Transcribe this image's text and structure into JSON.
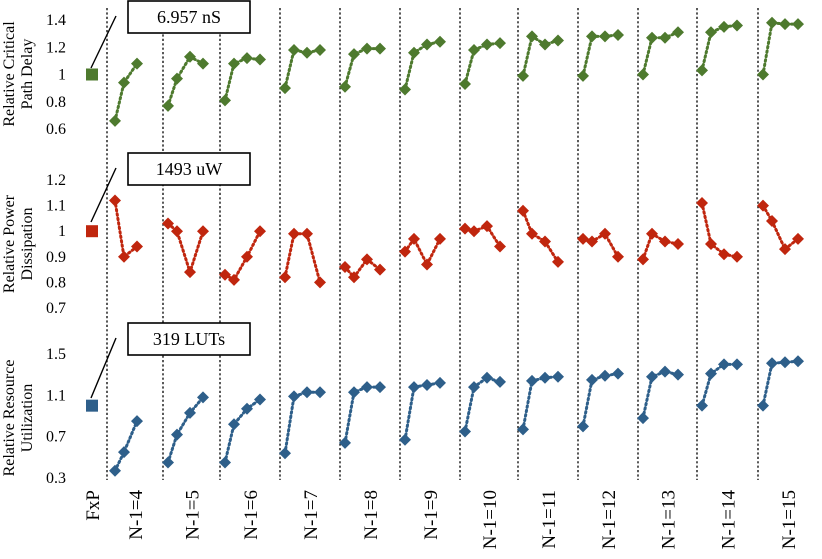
{
  "chart_data": {
    "type": "scatter",
    "categories": [
      "FxP",
      "N-1=4",
      "N-1=5",
      "N-1=6",
      "N-1=7",
      "N-1=8",
      "N-1=9",
      "N-1=10",
      "N-1=11",
      "N-1=12",
      "N-1=13",
      "N-1=14",
      "N-1=15"
    ],
    "panels": [
      {
        "id": "delay",
        "ylabel": [
          "Relative Critical",
          "Path Delay"
        ],
        "ylim": [
          0.6,
          1.4
        ],
        "yticks": [
          "1.4",
          "1.2",
          "1",
          "0.8",
          "0.6"
        ],
        "ytick_values": [
          1.4,
          1.2,
          1.0,
          0.8,
          0.6
        ],
        "color": "#4e7a2e",
        "baseline": 1.0,
        "callout": "6.957 nS",
        "groups": [
          [
            0.66,
            0.94,
            1.08
          ],
          [
            0.77,
            0.97,
            1.13,
            1.08
          ],
          [
            0.81,
            1.08,
            1.12,
            1.11
          ],
          [
            0.9,
            1.18,
            1.16,
            1.18
          ],
          [
            0.91,
            1.15,
            1.19,
            1.19
          ],
          [
            0.89,
            1.16,
            1.22,
            1.24
          ],
          [
            0.93,
            1.18,
            1.22,
            1.23
          ],
          [
            0.99,
            1.28,
            1.22,
            1.25
          ],
          [
            0.99,
            1.28,
            1.28,
            1.29
          ],
          [
            1.0,
            1.27,
            1.27,
            1.31
          ],
          [
            1.03,
            1.31,
            1.35,
            1.36
          ],
          [
            1.0,
            1.38,
            1.37,
            1.37
          ]
        ]
      },
      {
        "id": "power",
        "ylabel": [
          "Relative Power",
          "Dissipation"
        ],
        "ylim": [
          0.7,
          1.2
        ],
        "yticks": [
          "1.2",
          "1.1",
          "1",
          "0.9",
          "0.8",
          "0.7"
        ],
        "ytick_values": [
          1.2,
          1.1,
          1.0,
          0.9,
          0.8,
          0.7
        ],
        "color": "#c0260e",
        "baseline": 1.0,
        "callout": "1493 uW",
        "groups": [
          [
            1.12,
            0.9,
            0.94
          ],
          [
            1.03,
            1.0,
            0.84,
            1.0
          ],
          [
            0.83,
            0.81,
            0.9,
            1.0
          ],
          [
            0.82,
            0.99,
            0.99,
            0.8
          ],
          [
            0.86,
            0.82,
            0.89,
            0.85
          ],
          [
            0.92,
            0.97,
            0.87,
            0.97
          ],
          [
            1.01,
            1.0,
            1.02,
            0.94
          ],
          [
            1.08,
            0.99,
            0.96,
            0.88
          ],
          [
            0.97,
            0.96,
            0.99,
            0.9
          ],
          [
            0.89,
            0.99,
            0.96,
            0.95
          ],
          [
            1.11,
            0.95,
            0.91,
            0.9
          ],
          [
            1.1,
            1.04,
            0.93,
            0.97
          ]
        ]
      },
      {
        "id": "resource",
        "ylabel": [
          "Relative Resource",
          "Utilization"
        ],
        "ylim": [
          0.3,
          1.5
        ],
        "yticks": [
          "1.5",
          "1.1",
          "0.7",
          "0.3"
        ],
        "ytick_values": [
          1.5,
          1.1,
          0.7,
          0.3
        ],
        "color": "#2e5f8a",
        "baseline": 1.0,
        "callout": "319 LUTs",
        "groups": [
          [
            0.37,
            0.55,
            0.85
          ],
          [
            0.45,
            0.72,
            0.93,
            1.08
          ],
          [
            0.45,
            0.82,
            0.97,
            1.06
          ],
          [
            0.54,
            1.09,
            1.13,
            1.13
          ],
          [
            0.64,
            1.13,
            1.18,
            1.18
          ],
          [
            0.67,
            1.18,
            1.2,
            1.22
          ],
          [
            0.75,
            1.18,
            1.27,
            1.23
          ],
          [
            0.77,
            1.24,
            1.27,
            1.28
          ],
          [
            0.8,
            1.25,
            1.29,
            1.31
          ],
          [
            0.88,
            1.28,
            1.33,
            1.3
          ],
          [
            1.0,
            1.31,
            1.4,
            1.4
          ],
          [
            1.0,
            1.41,
            1.42,
            1.43
          ]
        ]
      }
    ]
  }
}
